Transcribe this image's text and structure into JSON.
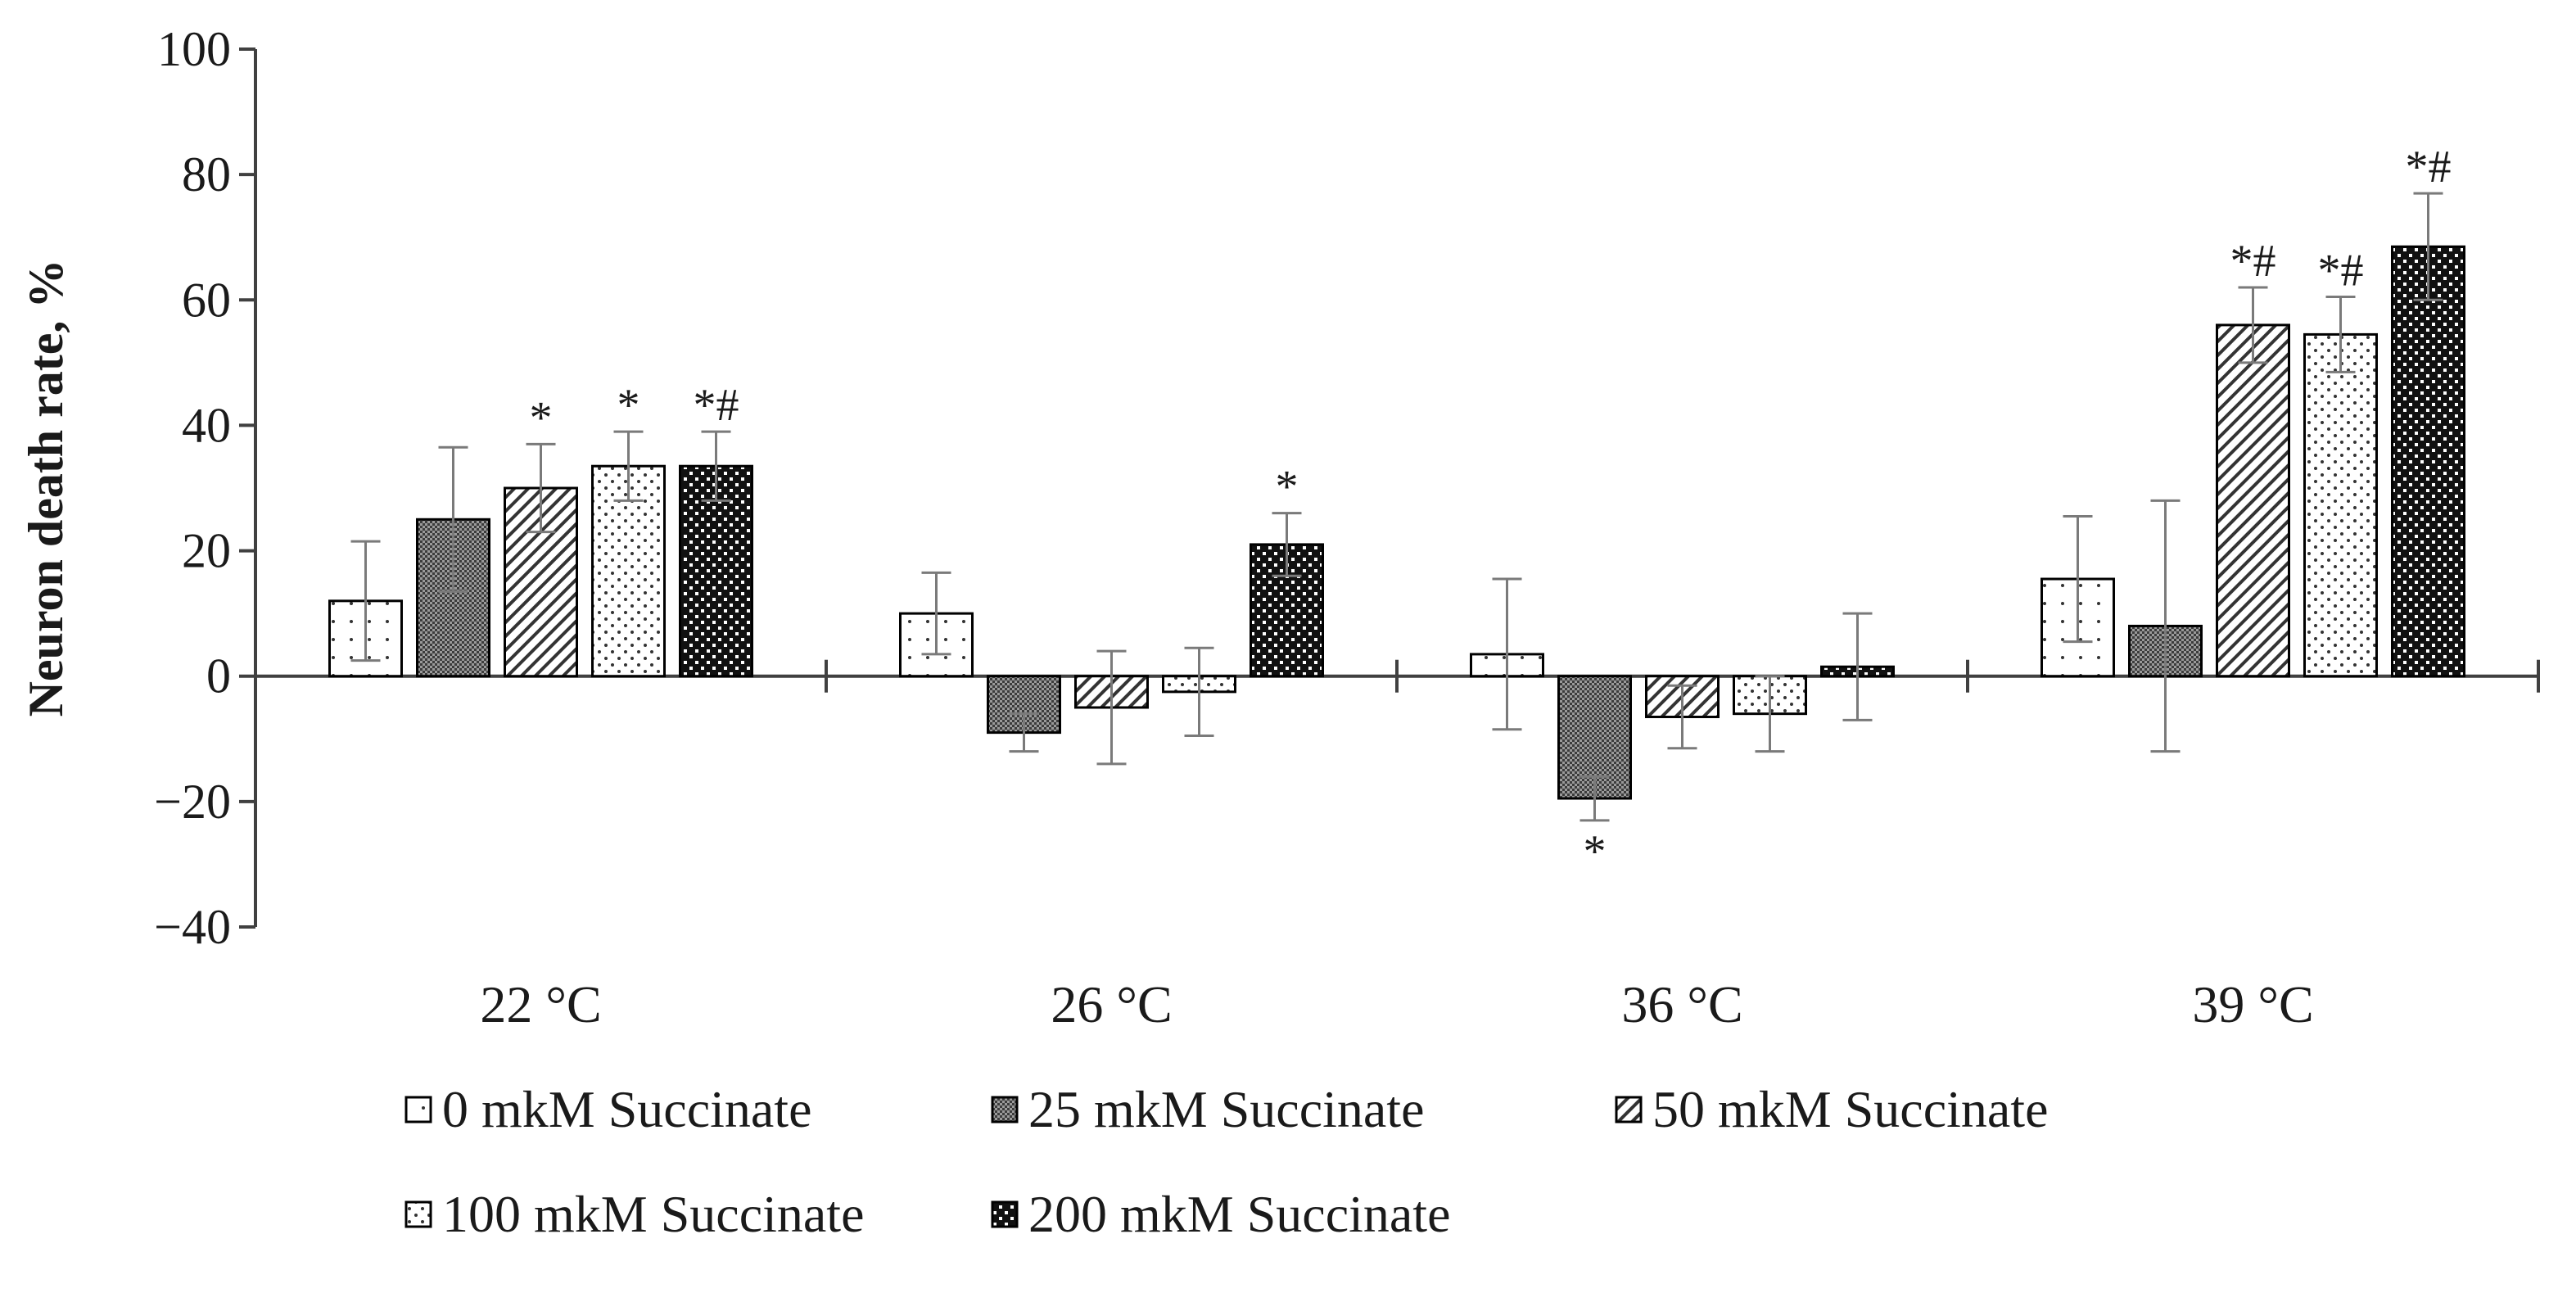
{
  "chart_data": {
    "type": "bar",
    "title": "",
    "xlabel": "",
    "ylabel": "Neuron death  rate, %",
    "ylim": [
      -40,
      100
    ],
    "yticks": [
      100,
      80,
      60,
      40,
      20,
      0,
      -20,
      -40
    ],
    "yticks_text": [
      "100",
      "80",
      "60",
      "40",
      "20",
      "0",
      "−20",
      "−40"
    ],
    "categories": [
      "22 °C",
      "26 °C",
      "36 °C",
      "39 °C"
    ],
    "series": [
      {
        "name": "0 mkM Succinate",
        "pattern": "sparse-dots",
        "values": [
          12,
          10,
          3.5,
          15.5
        ],
        "errors": [
          9.5,
          6.5,
          12,
          10
        ],
        "annotations": [
          "",
          "",
          "",
          ""
        ]
      },
      {
        "name": "25 mkM Succinate",
        "pattern": "dense-grid",
        "values": [
          25,
          -9,
          -19.5,
          8
        ],
        "errors": [
          11.5,
          3,
          3.5,
          20
        ],
        "annotations": [
          "",
          "",
          "*",
          ""
        ]
      },
      {
        "name": "50 mkM Succinate",
        "pattern": "diagonal",
        "values": [
          30,
          -5,
          -6.5,
          56
        ],
        "errors": [
          7,
          9,
          5,
          6
        ],
        "annotations": [
          "*",
          "",
          "",
          "*#"
        ]
      },
      {
        "name": "100 mkM Succinate",
        "pattern": "dots",
        "values": [
          33.5,
          -2.5,
          -6,
          54.5
        ],
        "errors": [
          5.5,
          7,
          6,
          6
        ],
        "annotations": [
          "*",
          "",
          "",
          "*#"
        ]
      },
      {
        "name": "200 mkM Succinate",
        "pattern": "checker",
        "values": [
          33.5,
          21,
          1.5,
          68.5
        ],
        "errors": [
          5.5,
          5,
          8.5,
          8.5
        ],
        "annotations": [
          "*#",
          "*",
          "",
          "*#"
        ]
      }
    ],
    "legend": {
      "position": "bottom",
      "rows": [
        [
          "0 mkM Succinate",
          "25 mkM Succinate",
          "50 mkM Succinate"
        ],
        [
          "100 mkM Succinate",
          "200 mkM Succinate"
        ]
      ]
    },
    "grid": false
  }
}
